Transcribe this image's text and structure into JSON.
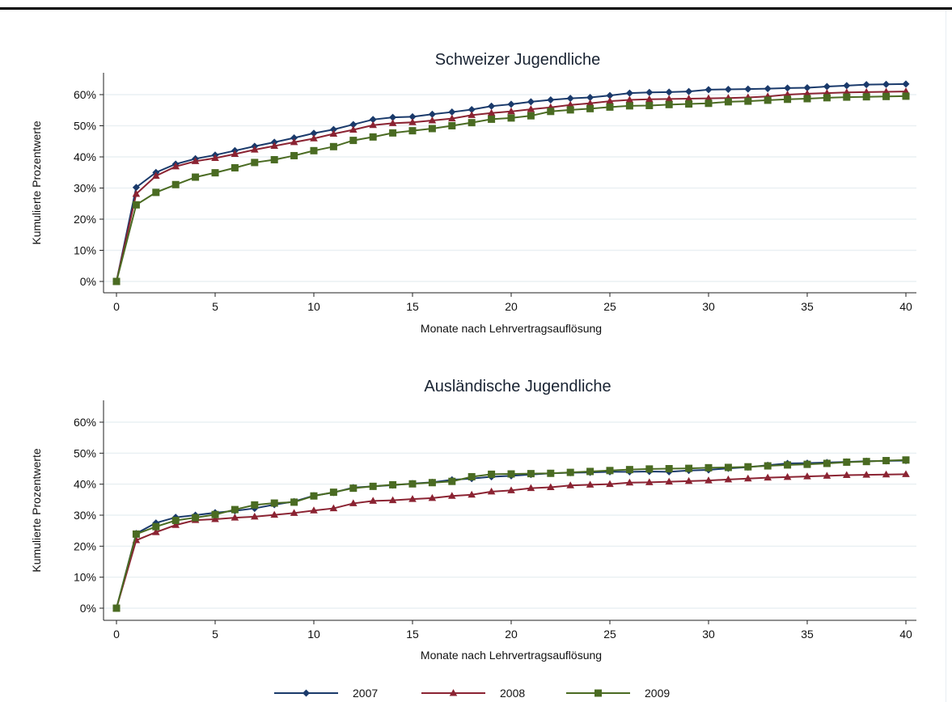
{
  "chart_data": {
    "type": "line",
    "x": [
      0,
      1,
      2,
      3,
      4,
      5,
      6,
      7,
      8,
      9,
      10,
      11,
      12,
      13,
      14,
      15,
      16,
      17,
      18,
      19,
      20,
      21,
      22,
      23,
      24,
      25,
      26,
      27,
      28,
      29,
      30,
      31,
      32,
      33,
      34,
      35,
      36,
      37,
      38,
      39,
      40
    ],
    "series_styles": [
      {
        "name": "2007",
        "color": "#1a3a6b",
        "marker": "diamond"
      },
      {
        "name": "2008",
        "color": "#8b2332",
        "marker": "triangle"
      },
      {
        "name": "2009",
        "color": "#4a6b22",
        "marker": "square"
      }
    ],
    "legend": {
      "position": "bottom",
      "entries": [
        "2007",
        "2008",
        "2009"
      ]
    },
    "panels": [
      {
        "title": "Schweizer Jugendliche",
        "xlabel": "Monate nach Lehrvertragsauflösung",
        "ylabel": "Kumulierte Prozentwerte",
        "xlim": [
          0,
          40
        ],
        "ylim": [
          0,
          60
        ],
        "xticks": [
          0,
          5,
          10,
          15,
          20,
          25,
          30,
          35,
          40
        ],
        "yticks": [
          0,
          10,
          20,
          30,
          40,
          50,
          60
        ],
        "ytick_labels": [
          "0%",
          "10%",
          "20%",
          "30%",
          "40%",
          "50%",
          "60%"
        ],
        "grid": true,
        "series": [
          {
            "name": "2007",
            "values": [
              0,
              30.2,
              35.0,
              37.7,
              39.4,
              40.6,
              42.0,
              43.4,
              44.7,
              46.1,
              47.6,
              48.8,
              50.4,
              52.0,
              52.7,
              52.9,
              53.7,
              54.4,
              55.2,
              56.3,
              56.9,
              57.7,
              58.3,
              58.8,
              59.1,
              59.7,
              60.5,
              60.7,
              60.8,
              61.0,
              61.6,
              61.7,
              61.8,
              61.9,
              62.1,
              62.2,
              62.6,
              62.9,
              63.2,
              63.3,
              63.4
            ]
          },
          {
            "name": "2008",
            "values": [
              0,
              28.1,
              33.9,
              36.9,
              38.6,
              39.6,
              40.9,
              42.3,
              43.5,
              44.7,
              45.9,
              47.4,
              48.7,
              50.2,
              50.8,
              51.1,
              51.7,
              52.3,
              53.4,
              54.1,
              54.6,
              55.3,
              55.9,
              56.7,
              57.2,
              57.9,
              58.3,
              58.5,
              58.6,
              58.7,
              58.8,
              58.9,
              59.1,
              59.4,
              60.0,
              60.3,
              60.5,
              60.7,
              60.8,
              60.9,
              61.0
            ]
          },
          {
            "name": "2009",
            "values": [
              0,
              24.6,
              28.6,
              31.1,
              33.5,
              34.9,
              36.5,
              38.2,
              39.1,
              40.4,
              42.0,
              43.3,
              45.3,
              46.4,
              47.7,
              48.4,
              49.1,
              50.0,
              51.0,
              52.1,
              52.5,
              53.2,
              54.6,
              55.1,
              55.5,
              56.0,
              56.4,
              56.5,
              56.8,
              57.0,
              57.2,
              57.7,
              57.9,
              58.2,
              58.5,
              58.7,
              59.0,
              59.2,
              59.3,
              59.4,
              59.5
            ]
          }
        ]
      },
      {
        "title": "Ausländische Jugendliche",
        "xlabel": "Monate nach Lehrvertragsauflösung",
        "ylabel": "Kumulierte Prozentwerte",
        "xlim": [
          0,
          40
        ],
        "ylim": [
          0,
          60
        ],
        "xticks": [
          0,
          5,
          10,
          15,
          20,
          25,
          30,
          35,
          40
        ],
        "yticks": [
          0,
          10,
          20,
          30,
          40,
          50,
          60
        ],
        "ytick_labels": [
          "0%",
          "10%",
          "20%",
          "30%",
          "40%",
          "50%",
          "60%"
        ],
        "grid": true,
        "series": [
          {
            "name": "2007",
            "values": [
              0,
              24.1,
              27.5,
              29.3,
              30.0,
              30.8,
              31.4,
              32.2,
              33.4,
              34.4,
              36.3,
              37.3,
              38.9,
              39.3,
              39.7,
              40.2,
              40.6,
              41.4,
              41.8,
              42.4,
              42.7,
              43.1,
              43.5,
              43.7,
              43.8,
              44.0,
              44.0,
              44.1,
              44.0,
              44.4,
              44.6,
              45.1,
              45.5,
              46.1,
              46.7,
              46.8,
              47.0,
              47.2,
              47.4,
              47.5,
              47.6
            ]
          },
          {
            "name": "2008",
            "values": [
              0,
              21.9,
              24.5,
              26.8,
              28.4,
              28.7,
              29.2,
              29.5,
              30.1,
              30.7,
              31.5,
              32.2,
              33.8,
              34.6,
              34.8,
              35.2,
              35.5,
              36.2,
              36.6,
              37.6,
              38.0,
              38.7,
              39.0,
              39.6,
              39.8,
              40.0,
              40.5,
              40.6,
              40.8,
              41.0,
              41.2,
              41.5,
              41.8,
              42.1,
              42.3,
              42.5,
              42.7,
              42.9,
              43.0,
              43.1,
              43.2
            ]
          },
          {
            "name": "2009",
            "values": [
              0,
              23.9,
              26.3,
              28.3,
              29.2,
              30.2,
              31.8,
              33.3,
              33.9,
              34.2,
              36.2,
              37.4,
              38.7,
              39.3,
              39.8,
              40.1,
              40.5,
              40.9,
              42.4,
              43.2,
              43.3,
              43.4,
              43.5,
              43.8,
              44.1,
              44.4,
              44.7,
              44.9,
              45.0,
              45.1,
              45.3,
              45.4,
              45.6,
              45.9,
              46.2,
              46.4,
              46.7,
              47.1,
              47.3,
              47.6,
              47.8
            ]
          }
        ]
      }
    ]
  }
}
